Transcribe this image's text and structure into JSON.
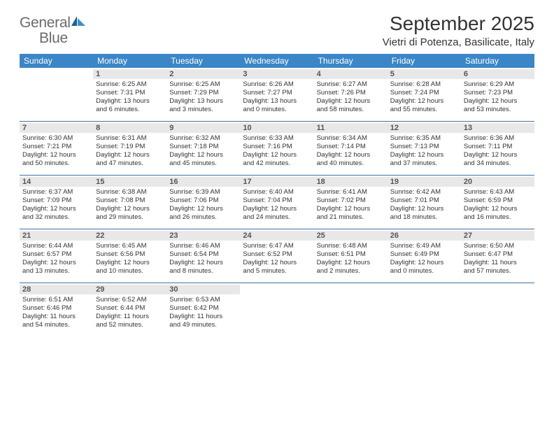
{
  "logo": {
    "word1": "General",
    "word2": "Blue"
  },
  "title": "September 2025",
  "location": "Vietri di Potenza, Basilicate, Italy",
  "colors": {
    "header_bg": "#3b86c6",
    "header_text": "#ffffff",
    "week_divider": "#3b71a0",
    "daynum_bg": "#e8e8e8",
    "daynum_text": "#555555",
    "body_text": "#333333",
    "logo_grey": "#6a6a6a",
    "logo_blue": "#2c7fbf"
  },
  "typography": {
    "month_title_fontsize": 28,
    "location_fontsize": 15,
    "dow_fontsize": 12,
    "daynum_fontsize": 11,
    "body_fontsize": 9.5
  },
  "days_of_week": [
    "Sunday",
    "Monday",
    "Tuesday",
    "Wednesday",
    "Thursday",
    "Friday",
    "Saturday"
  ],
  "weeks": [
    [
      {
        "num": "",
        "lines": []
      },
      {
        "num": "1",
        "lines": [
          "Sunrise: 6:25 AM",
          "Sunset: 7:31 PM",
          "Daylight: 13 hours",
          "and 6 minutes."
        ]
      },
      {
        "num": "2",
        "lines": [
          "Sunrise: 6:25 AM",
          "Sunset: 7:29 PM",
          "Daylight: 13 hours",
          "and 3 minutes."
        ]
      },
      {
        "num": "3",
        "lines": [
          "Sunrise: 6:26 AM",
          "Sunset: 7:27 PM",
          "Daylight: 13 hours",
          "and 0 minutes."
        ]
      },
      {
        "num": "4",
        "lines": [
          "Sunrise: 6:27 AM",
          "Sunset: 7:26 PM",
          "Daylight: 12 hours",
          "and 58 minutes."
        ]
      },
      {
        "num": "5",
        "lines": [
          "Sunrise: 6:28 AM",
          "Sunset: 7:24 PM",
          "Daylight: 12 hours",
          "and 55 minutes."
        ]
      },
      {
        "num": "6",
        "lines": [
          "Sunrise: 6:29 AM",
          "Sunset: 7:23 PM",
          "Daylight: 12 hours",
          "and 53 minutes."
        ]
      }
    ],
    [
      {
        "num": "7",
        "lines": [
          "Sunrise: 6:30 AM",
          "Sunset: 7:21 PM",
          "Daylight: 12 hours",
          "and 50 minutes."
        ]
      },
      {
        "num": "8",
        "lines": [
          "Sunrise: 6:31 AM",
          "Sunset: 7:19 PM",
          "Daylight: 12 hours",
          "and 47 minutes."
        ]
      },
      {
        "num": "9",
        "lines": [
          "Sunrise: 6:32 AM",
          "Sunset: 7:18 PM",
          "Daylight: 12 hours",
          "and 45 minutes."
        ]
      },
      {
        "num": "10",
        "lines": [
          "Sunrise: 6:33 AM",
          "Sunset: 7:16 PM",
          "Daylight: 12 hours",
          "and 42 minutes."
        ]
      },
      {
        "num": "11",
        "lines": [
          "Sunrise: 6:34 AM",
          "Sunset: 7:14 PM",
          "Daylight: 12 hours",
          "and 40 minutes."
        ]
      },
      {
        "num": "12",
        "lines": [
          "Sunrise: 6:35 AM",
          "Sunset: 7:13 PM",
          "Daylight: 12 hours",
          "and 37 minutes."
        ]
      },
      {
        "num": "13",
        "lines": [
          "Sunrise: 6:36 AM",
          "Sunset: 7:11 PM",
          "Daylight: 12 hours",
          "and 34 minutes."
        ]
      }
    ],
    [
      {
        "num": "14",
        "lines": [
          "Sunrise: 6:37 AM",
          "Sunset: 7:09 PM",
          "Daylight: 12 hours",
          "and 32 minutes."
        ]
      },
      {
        "num": "15",
        "lines": [
          "Sunrise: 6:38 AM",
          "Sunset: 7:08 PM",
          "Daylight: 12 hours",
          "and 29 minutes."
        ]
      },
      {
        "num": "16",
        "lines": [
          "Sunrise: 6:39 AM",
          "Sunset: 7:06 PM",
          "Daylight: 12 hours",
          "and 26 minutes."
        ]
      },
      {
        "num": "17",
        "lines": [
          "Sunrise: 6:40 AM",
          "Sunset: 7:04 PM",
          "Daylight: 12 hours",
          "and 24 minutes."
        ]
      },
      {
        "num": "18",
        "lines": [
          "Sunrise: 6:41 AM",
          "Sunset: 7:02 PM",
          "Daylight: 12 hours",
          "and 21 minutes."
        ]
      },
      {
        "num": "19",
        "lines": [
          "Sunrise: 6:42 AM",
          "Sunset: 7:01 PM",
          "Daylight: 12 hours",
          "and 18 minutes."
        ]
      },
      {
        "num": "20",
        "lines": [
          "Sunrise: 6:43 AM",
          "Sunset: 6:59 PM",
          "Daylight: 12 hours",
          "and 16 minutes."
        ]
      }
    ],
    [
      {
        "num": "21",
        "lines": [
          "Sunrise: 6:44 AM",
          "Sunset: 6:57 PM",
          "Daylight: 12 hours",
          "and 13 minutes."
        ]
      },
      {
        "num": "22",
        "lines": [
          "Sunrise: 6:45 AM",
          "Sunset: 6:56 PM",
          "Daylight: 12 hours",
          "and 10 minutes."
        ]
      },
      {
        "num": "23",
        "lines": [
          "Sunrise: 6:46 AM",
          "Sunset: 6:54 PM",
          "Daylight: 12 hours",
          "and 8 minutes."
        ]
      },
      {
        "num": "24",
        "lines": [
          "Sunrise: 6:47 AM",
          "Sunset: 6:52 PM",
          "Daylight: 12 hours",
          "and 5 minutes."
        ]
      },
      {
        "num": "25",
        "lines": [
          "Sunrise: 6:48 AM",
          "Sunset: 6:51 PM",
          "Daylight: 12 hours",
          "and 2 minutes."
        ]
      },
      {
        "num": "26",
        "lines": [
          "Sunrise: 6:49 AM",
          "Sunset: 6:49 PM",
          "Daylight: 12 hours",
          "and 0 minutes."
        ]
      },
      {
        "num": "27",
        "lines": [
          "Sunrise: 6:50 AM",
          "Sunset: 6:47 PM",
          "Daylight: 11 hours",
          "and 57 minutes."
        ]
      }
    ],
    [
      {
        "num": "28",
        "lines": [
          "Sunrise: 6:51 AM",
          "Sunset: 6:46 PM",
          "Daylight: 11 hours",
          "and 54 minutes."
        ]
      },
      {
        "num": "29",
        "lines": [
          "Sunrise: 6:52 AM",
          "Sunset: 6:44 PM",
          "Daylight: 11 hours",
          "and 52 minutes."
        ]
      },
      {
        "num": "30",
        "lines": [
          "Sunrise: 6:53 AM",
          "Sunset: 6:42 PM",
          "Daylight: 11 hours",
          "and 49 minutes."
        ]
      },
      {
        "num": "",
        "lines": []
      },
      {
        "num": "",
        "lines": []
      },
      {
        "num": "",
        "lines": []
      },
      {
        "num": "",
        "lines": []
      }
    ]
  ]
}
